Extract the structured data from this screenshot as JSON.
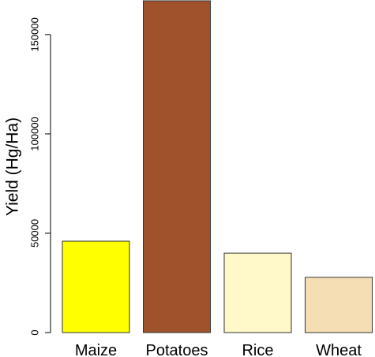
{
  "chart_data": {
    "type": "bar",
    "title": "",
    "xlabel": "",
    "ylabel": "Yield (Hg/Ha)",
    "categories": [
      "Maize",
      "Potatoes",
      "Rice",
      "Wheat"
    ],
    "values": [
      46000,
      167000,
      40000,
      27800
    ],
    "colors": [
      "#ffff00",
      "#a0522d",
      "#fff8c8",
      "#f5deb3"
    ],
    "ylim": [
      0,
      167000
    ],
    "yticks": [
      0,
      50000,
      100000,
      150000
    ],
    "ytick_labels": [
      "0",
      "50000",
      "100000",
      "150000"
    ],
    "grid": false,
    "legend": "none"
  }
}
